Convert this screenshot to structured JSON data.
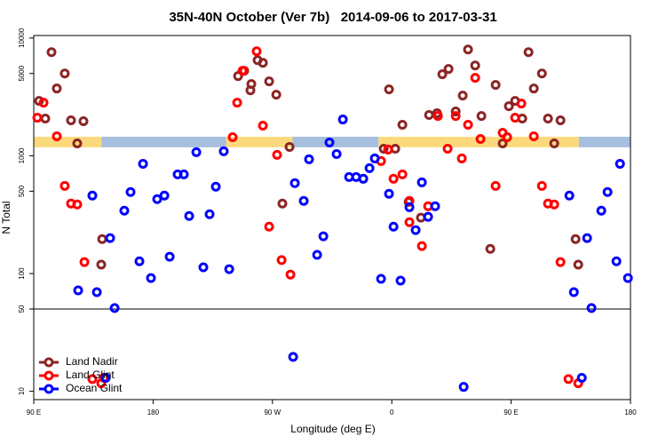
{
  "chart_data": {
    "type": "scatter",
    "title": "35N-40N October (Ver 7b)   2014-09-06 to 2017-03-31",
    "x_label": "Longitude (deg E)",
    "y_label": "N Total",
    "log_y": true,
    "xlim": [
      90,
      540
    ],
    "ylim": [
      8.5,
      10500
    ],
    "xticks": [
      {
        "value": 90,
        "label": "90 E"
      },
      180,
      {
        "value": 270,
        "label": "90 W"
      },
      {
        "value": 360,
        "label": "0"
      },
      {
        "value": 450,
        "label": "90 E"
      },
      {
        "value": 540,
        "label": "180"
      }
    ],
    "yticks": [
      10,
      50,
      100,
      500,
      1000,
      5000,
      10000
    ],
    "hline": 50,
    "legend_position": "bottom-left",
    "surface_band": {
      "ylim": [
        1180,
        1450
      ],
      "land_color": "#fcd97c",
      "ocean_color": "#a6bfdf",
      "land_segments": [
        [
          90,
          141
        ],
        [
          235,
          285
        ],
        [
          350,
          501
        ]
      ],
      "ocean_segments": [
        [
          141,
          235
        ],
        [
          285,
          350
        ],
        [
          501,
          540
        ]
      ]
    },
    "series": [
      {
        "name": "Land Nadir",
        "color": "#8b2525",
        "x": [
          94.0,
          103.4,
          107.4,
          113.4,
          98.7,
          118.1,
          127.5,
          122.8,
          141.6,
          140.9,
          244.1,
          248.7,
          254.1,
          253.4,
          258.8,
          262.8,
          267.5,
          272.9,
          282.9,
          277.5,
          357.9,
          362.6,
          353.9,
          368.0,
          372.7,
          382.0,
          388.1,
          394.1,
          398.1,
          402.8,
          408.2,
          413.5,
          417.5,
          422.9,
          427.6,
          438.3,
          443.6,
          448.3,
          453.0,
          458.4,
          463.1,
          467.1,
          473.2,
          477.8,
          487.2,
          482.5,
          434.3,
          498.6,
          500.6
        ],
        "values": [
          2924,
          7586,
          3725,
          5000,
          2070,
          2000,
          1965,
          1274,
          196,
          119,
          4750,
          5270,
          4064,
          3597,
          6486,
          6152,
          4283,
          3302,
          1189,
          393,
          3664,
          1148,
          1148,
          1833,
          406,
          298,
          2218,
          2296,
          4920,
          5458,
          2377,
          3245,
          7986,
          5849,
          2178,
          3996,
          1274,
          2637,
          2924,
          2070,
          7586,
          3725,
          5000,
          2070,
          2000,
          1274,
          162,
          196,
          119
        ]
      },
      {
        "name": "Land Glint",
        "color": "#ff0000",
        "x": [
          92.7,
          97.4,
          107.4,
          113.4,
          118.1,
          122.8,
          128.2,
          134.2,
          140.9,
          142.9,
          240.0,
          243.4,
          247.4,
          248.1,
          258.1,
          262.8,
          267.5,
          273.5,
          276.9,
          283.6,
          351.9,
          357.2,
          361.3,
          368.0,
          373.3,
          373.3,
          382.7,
          387.4,
          394.8,
          402.1,
          408.2,
          412.8,
          417.5,
          422.9,
          426.9,
          438.3,
          443.6,
          447.0,
          453.0,
          457.7,
          467.1,
          473.2,
          477.8,
          482.5,
          487.2,
          493.2,
          500.6
        ],
        "values": [
          2105,
          2825,
          1463,
          555,
          393,
          386,
          125,
          12.7,
          11.7,
          13.0,
          1438,
          2825,
          5270,
          5270,
          7712,
          1803,
          250,
          1018,
          130,
          98,
          902,
          1129,
          638,
          695,
          414,
          273,
          171,
          373,
          2178,
          1148,
          2178,
          949,
          1833,
          4590,
          1389,
          555,
          1567,
          1438,
          2105,
          2778,
          1463,
          555,
          393,
          386,
          125,
          12.7,
          11.7
        ]
      },
      {
        "name": "Ocean Glint",
        "color": "#0000ff",
        "x": [
          123.5,
          134.2,
          137.6,
          144.3,
          147.6,
          151.0,
          158.3,
          163.0,
          169.7,
          172.4,
          178.4,
          183.1,
          188.5,
          192.5,
          198.5,
          203.2,
          207.2,
          212.6,
          217.9,
          222.6,
          227.3,
          233.3,
          237.4,
          285.6,
          286.9,
          293.6,
          297.6,
          303.7,
          308.4,
          313.0,
          318.4,
          323.1,
          327.8,
          333.1,
          338.5,
          343.2,
          347.2,
          351.9,
          357.9,
          361.3,
          366.6,
          373.3,
          378.0,
          382.7,
          387.4,
          392.7,
          414.2,
          493.9,
          497.3,
          503.3,
          507.3,
          510.6,
          518.0,
          522.7,
          529.4,
          532.1,
          538.1
        ],
        "values": [
          71.9,
          459,
          69.5,
          13.0,
          200,
          50.9,
          342,
          492,
          127,
          855,
          91.6,
          428,
          459,
          139,
          695,
          695,
          308,
          1072,
          113,
          319,
          546,
          1091,
          109,
          19.6,
          585,
          414,
          933,
          144,
          207,
          1297,
          1035,
          2033,
          660,
          660,
          638,
          785,
          949,
          90.1,
          475,
          250,
          87.1,
          366,
          234,
          595,
          303,
          373,
          10.9,
          459,
          69.5,
          13.0,
          200,
          50.9,
          342,
          492,
          127,
          855,
          91.6
        ]
      }
    ]
  }
}
